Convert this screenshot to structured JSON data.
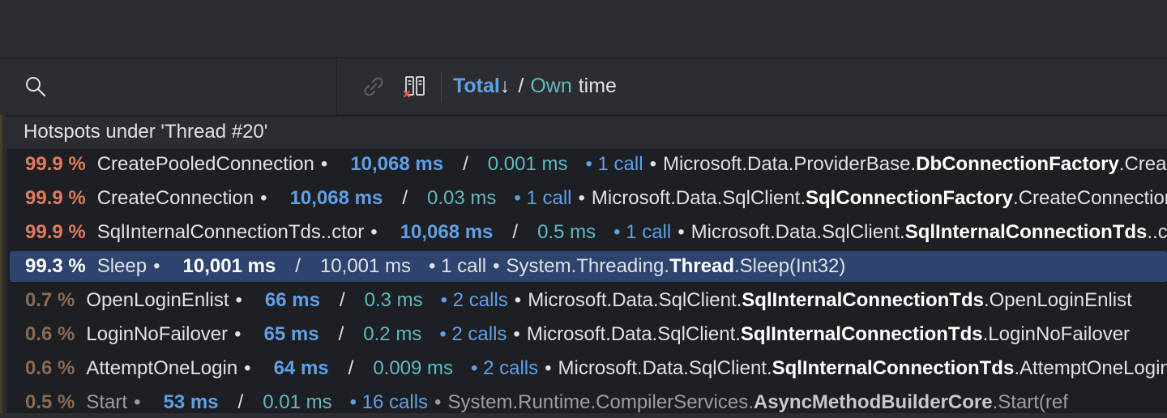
{
  "toolbar": {
    "sort_total": "Total",
    "sort_arrow": "↓",
    "sort_slash": "/",
    "sort_own": "Own",
    "sort_time": "time"
  },
  "tree": {
    "header": "Hotspots under 'Thread #20'",
    "rows": [
      {
        "pct": "99.9 %",
        "method": "CreatePooledConnection",
        "total": "10,068 ms",
        "own": "0.001 ms",
        "calls": "• 1 call",
        "ns": "Microsoft.Data.ProviderBase.",
        "cls": "DbConnectionFactory",
        "tail": ".CreatePooledConnection"
      },
      {
        "pct": "99.9 %",
        "method": "CreateConnection",
        "total": "10,068 ms",
        "own": "0.03 ms",
        "calls": "• 1 call",
        "ns": "Microsoft.Data.SqlClient.",
        "cls": "SqlConnectionFactory",
        "tail": ".CreateConnection"
      },
      {
        "pct": "99.9 %",
        "method": "SqlInternalConnectionTds..ctor",
        "total": "10,068 ms",
        "own": "0.5 ms",
        "calls": "• 1 call",
        "ns": "Microsoft.Data.SqlClient.",
        "cls": "SqlInternalConnectionTds",
        "tail": "..ctor"
      },
      {
        "pct": "99.3 %",
        "method": "Sleep",
        "total": "10,001 ms",
        "own": "10,001 ms",
        "calls": "• 1 call",
        "ns": "System.Threading.",
        "cls": "Thread",
        "tail": ".Sleep(Int32)"
      },
      {
        "pct": "0.7 %",
        "method": "OpenLoginEnlist",
        "total": "66 ms",
        "own": "0.3 ms",
        "calls": "• 2 calls",
        "ns": "Microsoft.Data.SqlClient.",
        "cls": "SqlInternalConnectionTds",
        "tail": ".OpenLoginEnlist"
      },
      {
        "pct": "0.6 %",
        "method": "LoginNoFailover",
        "total": "65 ms",
        "own": "0.2 ms",
        "calls": "• 2 calls",
        "ns": "Microsoft.Data.SqlClient.",
        "cls": "SqlInternalConnectionTds",
        "tail": ".LoginNoFailover"
      },
      {
        "pct": "0.6 %",
        "method": "AttemptOneLogin",
        "total": "64 ms",
        "own": "0.009 ms",
        "calls": "• 2 calls",
        "ns": "Microsoft.Data.SqlClient.",
        "cls": "SqlInternalConnectionTds",
        "tail": ".AttemptOneLogin"
      },
      {
        "pct": "0.5 %",
        "method": "Start",
        "total": "53 ms",
        "own": "0.01 ms",
        "calls": "• 16 calls",
        "ns": "System.Runtime.CompilerServices.",
        "cls": "AsyncMethodBuilderCore",
        "tail": ".Start(ref"
      }
    ]
  }
}
